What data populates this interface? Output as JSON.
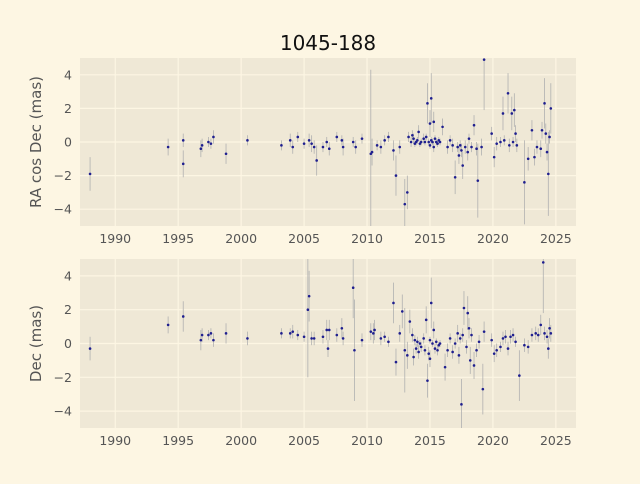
{
  "figure": {
    "title": "1045-188",
    "background": "#fdf6e3",
    "axes_background": "#efe8d6",
    "point_color": "#1f1f8f",
    "errorbar_color": "#b0b0b0"
  },
  "chart_data": [
    {
      "type": "scatter",
      "ylabel": "RA cos Dec (mas)",
      "xlim": [
        1987.2,
        2026.6
      ],
      "ylim": [
        -5,
        5
      ],
      "xticks": [
        1990,
        1995,
        2000,
        2005,
        2010,
        2015,
        2020,
        2025
      ],
      "yticks": [
        -4,
        -2,
        0,
        2,
        4
      ],
      "grid": true,
      "points": [
        {
          "x": 1988.0,
          "y": -1.9,
          "err": 1.0
        },
        {
          "x": 1994.2,
          "y": -0.3,
          "err": 0.5
        },
        {
          "x": 1995.4,
          "y": 0.1,
          "err": 0.4
        },
        {
          "x": 1995.4,
          "y": -1.3,
          "err": 0.8
        },
        {
          "x": 1996.8,
          "y": -0.4,
          "err": 0.5
        },
        {
          "x": 1996.9,
          "y": -0.2,
          "err": 0.4
        },
        {
          "x": 1997.4,
          "y": 0.0,
          "err": 0.3
        },
        {
          "x": 1997.6,
          "y": -0.1,
          "err": 0.3
        },
        {
          "x": 1997.8,
          "y": 0.3,
          "err": 0.4
        },
        {
          "x": 1998.8,
          "y": -0.7,
          "err": 0.6
        },
        {
          "x": 2000.5,
          "y": 0.1,
          "err": 0.3
        },
        {
          "x": 2003.2,
          "y": -0.2,
          "err": 0.3
        },
        {
          "x": 2003.9,
          "y": 0.1,
          "err": 0.4
        },
        {
          "x": 2004.1,
          "y": -0.3,
          "err": 0.4
        },
        {
          "x": 2004.5,
          "y": 0.3,
          "err": 0.3
        },
        {
          "x": 2005.0,
          "y": -0.1,
          "err": 0.3
        },
        {
          "x": 2005.4,
          "y": 0.1,
          "err": 0.4
        },
        {
          "x": 2005.6,
          "y": -0.1,
          "err": 0.5
        },
        {
          "x": 2005.8,
          "y": -0.3,
          "err": 0.4
        },
        {
          "x": 2006.0,
          "y": -1.1,
          "err": 0.9
        },
        {
          "x": 2006.5,
          "y": -0.3,
          "err": 0.3
        },
        {
          "x": 2006.8,
          "y": 0.0,
          "err": 0.3
        },
        {
          "x": 2007.0,
          "y": -0.4,
          "err": 0.4
        },
        {
          "x": 2007.6,
          "y": 0.3,
          "err": 0.3
        },
        {
          "x": 2008.0,
          "y": 0.1,
          "err": 0.3
        },
        {
          "x": 2008.1,
          "y": -0.3,
          "err": 0.5
        },
        {
          "x": 2008.9,
          "y": 0.0,
          "err": 0.3
        },
        {
          "x": 2009.1,
          "y": -0.3,
          "err": 0.4
        },
        {
          "x": 2009.6,
          "y": 0.2,
          "err": 0.3
        },
        {
          "x": 2010.3,
          "y": -0.7,
          "err": 5.0
        },
        {
          "x": 2010.4,
          "y": -0.6,
          "err": 0.8
        },
        {
          "x": 2010.8,
          "y": -0.2,
          "err": 0.3
        },
        {
          "x": 2011.1,
          "y": -0.3,
          "err": 0.4
        },
        {
          "x": 2011.4,
          "y": 0.1,
          "err": 0.3
        },
        {
          "x": 2011.7,
          "y": 0.3,
          "err": 0.3
        },
        {
          "x": 2012.1,
          "y": -0.5,
          "err": 0.6
        },
        {
          "x": 2012.3,
          "y": -2.0,
          "err": 1.2
        },
        {
          "x": 2012.6,
          "y": -0.3,
          "err": 0.4
        },
        {
          "x": 2013.0,
          "y": -3.7,
          "err": 1.5
        },
        {
          "x": 2013.2,
          "y": -3.0,
          "err": 1.0
        },
        {
          "x": 2013.3,
          "y": 0.3,
          "err": 0.3
        },
        {
          "x": 2013.5,
          "y": 0.0,
          "err": 0.3
        },
        {
          "x": 2013.6,
          "y": 0.4,
          "err": 0.3
        },
        {
          "x": 2013.7,
          "y": 0.2,
          "err": 0.3
        },
        {
          "x": 2013.8,
          "y": -0.1,
          "err": 0.2
        },
        {
          "x": 2013.9,
          "y": 0.0,
          "err": 0.2
        },
        {
          "x": 2014.0,
          "y": 0.1,
          "err": 0.2
        },
        {
          "x": 2014.1,
          "y": 0.6,
          "err": 0.4
        },
        {
          "x": 2014.2,
          "y": -0.1,
          "err": 0.2
        },
        {
          "x": 2014.3,
          "y": 0.0,
          "err": 0.2
        },
        {
          "x": 2014.5,
          "y": 0.2,
          "err": 0.3
        },
        {
          "x": 2014.6,
          "y": 0.0,
          "err": 0.2
        },
        {
          "x": 2014.7,
          "y": 0.3,
          "err": 0.2
        },
        {
          "x": 2014.8,
          "y": 2.3,
          "err": 1.2
        },
        {
          "x": 2014.9,
          "y": 0.0,
          "err": 0.2
        },
        {
          "x": 2015.0,
          "y": 1.1,
          "err": 0.8
        },
        {
          "x": 2015.0,
          "y": -0.2,
          "err": 0.2
        },
        {
          "x": 2015.1,
          "y": 0.1,
          "err": 0.2
        },
        {
          "x": 2015.1,
          "y": 2.6,
          "err": 1.5
        },
        {
          "x": 2015.2,
          "y": 0.0,
          "err": 0.2
        },
        {
          "x": 2015.3,
          "y": -0.3,
          "err": 0.3
        },
        {
          "x": 2015.3,
          "y": 1.2,
          "err": 0.6
        },
        {
          "x": 2015.4,
          "y": 0.2,
          "err": 0.2
        },
        {
          "x": 2015.5,
          "y": 0.0,
          "err": 0.2
        },
        {
          "x": 2015.6,
          "y": -0.1,
          "err": 0.2
        },
        {
          "x": 2015.7,
          "y": 0.1,
          "err": 0.2
        },
        {
          "x": 2015.8,
          "y": 0.0,
          "err": 0.2
        },
        {
          "x": 2016.0,
          "y": 0.9,
          "err": 0.5
        },
        {
          "x": 2016.4,
          "y": -0.3,
          "err": 0.4
        },
        {
          "x": 2016.6,
          "y": 0.1,
          "err": 0.3
        },
        {
          "x": 2016.8,
          "y": -0.2,
          "err": 0.4
        },
        {
          "x": 2017.0,
          "y": -2.1,
          "err": 1.0
        },
        {
          "x": 2017.2,
          "y": -0.3,
          "err": 0.3
        },
        {
          "x": 2017.3,
          "y": -0.8,
          "err": 0.5
        },
        {
          "x": 2017.4,
          "y": -0.2,
          "err": 0.3
        },
        {
          "x": 2017.5,
          "y": -0.5,
          "err": 0.4
        },
        {
          "x": 2017.6,
          "y": -1.4,
          "err": 0.8
        },
        {
          "x": 2017.8,
          "y": -0.3,
          "err": 0.4
        },
        {
          "x": 2018.0,
          "y": -0.6,
          "err": 0.5
        },
        {
          "x": 2018.1,
          "y": 0.2,
          "err": 0.3
        },
        {
          "x": 2018.3,
          "y": -0.3,
          "err": 0.3
        },
        {
          "x": 2018.5,
          "y": 1.0,
          "err": 0.6
        },
        {
          "x": 2018.7,
          "y": -0.4,
          "err": 0.4
        },
        {
          "x": 2018.8,
          "y": -2.3,
          "err": 2.2
        },
        {
          "x": 2019.1,
          "y": -0.3,
          "err": 0.5
        },
        {
          "x": 2019.3,
          "y": 4.9,
          "err": 3.0
        },
        {
          "x": 2019.9,
          "y": 0.5,
          "err": 0.4
        },
        {
          "x": 2020.1,
          "y": -0.9,
          "err": 0.6
        },
        {
          "x": 2020.3,
          "y": -0.1,
          "err": 0.4
        },
        {
          "x": 2020.6,
          "y": 0.0,
          "err": 0.3
        },
        {
          "x": 2020.8,
          "y": 1.7,
          "err": 1.0
        },
        {
          "x": 2020.9,
          "y": 0.1,
          "err": 0.3
        },
        {
          "x": 2021.2,
          "y": 2.9,
          "err": 1.2
        },
        {
          "x": 2021.3,
          "y": -0.2,
          "err": 0.4
        },
        {
          "x": 2021.5,
          "y": 1.7,
          "err": 1.0
        },
        {
          "x": 2021.6,
          "y": 0.0,
          "err": 0.3
        },
        {
          "x": 2021.7,
          "y": 1.9,
          "err": 1.0
        },
        {
          "x": 2021.8,
          "y": 0.5,
          "err": 0.5
        },
        {
          "x": 2021.9,
          "y": -0.2,
          "err": 0.4
        },
        {
          "x": 2022.5,
          "y": -2.4,
          "err": 2.5
        },
        {
          "x": 2022.8,
          "y": -1.0,
          "err": 0.7
        },
        {
          "x": 2023.1,
          "y": 0.7,
          "err": 0.6
        },
        {
          "x": 2023.3,
          "y": -0.9,
          "err": 0.5
        },
        {
          "x": 2023.5,
          "y": -0.3,
          "err": 0.4
        },
        {
          "x": 2023.8,
          "y": -0.4,
          "err": 0.5
        },
        {
          "x": 2023.9,
          "y": 0.7,
          "err": 0.5
        },
        {
          "x": 2024.1,
          "y": 2.3,
          "err": 1.5
        },
        {
          "x": 2024.2,
          "y": 0.5,
          "err": 0.6
        },
        {
          "x": 2024.3,
          "y": -0.6,
          "err": 0.5
        },
        {
          "x": 2024.4,
          "y": -1.9,
          "err": 2.5
        },
        {
          "x": 2024.5,
          "y": 0.3,
          "err": 0.4
        },
        {
          "x": 2024.6,
          "y": 2.0,
          "err": 1.5
        }
      ]
    },
    {
      "type": "scatter",
      "ylabel": "Dec (mas)",
      "xlim": [
        1987.2,
        2026.6
      ],
      "ylim": [
        -5,
        5
      ],
      "xticks": [
        1990,
        1995,
        2000,
        2005,
        2010,
        2015,
        2020,
        2025
      ],
      "yticks": [
        -4,
        -2,
        0,
        2,
        4
      ],
      "grid": true,
      "points": [
        {
          "x": 1988.0,
          "y": -0.3,
          "err": 0.7
        },
        {
          "x": 1994.2,
          "y": 1.1,
          "err": 0.5
        },
        {
          "x": 1995.4,
          "y": 1.6,
          "err": 0.9
        },
        {
          "x": 1996.8,
          "y": 0.2,
          "err": 0.6
        },
        {
          "x": 1996.9,
          "y": 0.5,
          "err": 0.4
        },
        {
          "x": 1997.4,
          "y": 0.5,
          "err": 0.3
        },
        {
          "x": 1997.6,
          "y": 0.6,
          "err": 0.3
        },
        {
          "x": 1997.8,
          "y": 0.2,
          "err": 0.4
        },
        {
          "x": 1998.8,
          "y": 0.6,
          "err": 0.6
        },
        {
          "x": 2000.5,
          "y": 0.3,
          "err": 0.4
        },
        {
          "x": 2003.2,
          "y": 0.6,
          "err": 0.3
        },
        {
          "x": 2003.9,
          "y": 0.6,
          "err": 0.3
        },
        {
          "x": 2004.1,
          "y": 0.7,
          "err": 0.4
        },
        {
          "x": 2004.5,
          "y": 0.5,
          "err": 0.3
        },
        {
          "x": 2005.0,
          "y": 0.4,
          "err": 0.3
        },
        {
          "x": 2005.3,
          "y": 2.0,
          "err": 4.0
        },
        {
          "x": 2005.4,
          "y": 2.8,
          "err": 1.5
        },
        {
          "x": 2005.6,
          "y": 0.3,
          "err": 0.4
        },
        {
          "x": 2005.8,
          "y": 0.3,
          "err": 0.4
        },
        {
          "x": 2006.5,
          "y": 0.4,
          "err": 0.4
        },
        {
          "x": 2006.8,
          "y": 0.8,
          "err": 0.6
        },
        {
          "x": 2006.9,
          "y": -0.3,
          "err": 0.5
        },
        {
          "x": 2007.0,
          "y": 0.8,
          "err": 0.6
        },
        {
          "x": 2007.6,
          "y": 0.5,
          "err": 0.4
        },
        {
          "x": 2008.0,
          "y": 0.9,
          "err": 0.6
        },
        {
          "x": 2008.1,
          "y": 0.3,
          "err": 0.4
        },
        {
          "x": 2008.9,
          "y": 3.3,
          "err": 1.8
        },
        {
          "x": 2009.0,
          "y": -0.4,
          "err": 3.0
        },
        {
          "x": 2009.6,
          "y": 0.2,
          "err": 0.4
        },
        {
          "x": 2010.3,
          "y": 0.7,
          "err": 0.5
        },
        {
          "x": 2010.5,
          "y": 0.6,
          "err": 0.6
        },
        {
          "x": 2010.6,
          "y": 0.8,
          "err": 0.6
        },
        {
          "x": 2011.1,
          "y": 0.3,
          "err": 0.4
        },
        {
          "x": 2011.4,
          "y": 0.4,
          "err": 0.3
        },
        {
          "x": 2011.7,
          "y": 0.1,
          "err": 0.3
        },
        {
          "x": 2012.1,
          "y": 2.4,
          "err": 1.2
        },
        {
          "x": 2012.3,
          "y": -1.1,
          "err": 0.8
        },
        {
          "x": 2012.6,
          "y": 0.6,
          "err": 0.5
        },
        {
          "x": 2012.8,
          "y": 1.9,
          "err": 1.0
        },
        {
          "x": 2013.0,
          "y": -0.4,
          "err": 2.5
        },
        {
          "x": 2013.2,
          "y": -0.7,
          "err": 0.8
        },
        {
          "x": 2013.4,
          "y": 1.3,
          "err": 0.7
        },
        {
          "x": 2013.6,
          "y": 0.5,
          "err": 0.4
        },
        {
          "x": 2013.7,
          "y": -0.8,
          "err": 0.5
        },
        {
          "x": 2013.8,
          "y": 0.2,
          "err": 0.3
        },
        {
          "x": 2013.9,
          "y": -0.3,
          "err": 0.3
        },
        {
          "x": 2014.0,
          "y": 0.1,
          "err": 0.3
        },
        {
          "x": 2014.1,
          "y": -0.5,
          "err": 0.4
        },
        {
          "x": 2014.2,
          "y": 0.0,
          "err": 0.2
        },
        {
          "x": 2014.3,
          "y": -0.2,
          "err": 0.3
        },
        {
          "x": 2014.5,
          "y": 0.3,
          "err": 0.3
        },
        {
          "x": 2014.6,
          "y": -0.4,
          "err": 0.3
        },
        {
          "x": 2014.7,
          "y": 1.4,
          "err": 0.8
        },
        {
          "x": 2014.8,
          "y": -2.2,
          "err": 1.0
        },
        {
          "x": 2014.9,
          "y": -0.6,
          "err": 0.4
        },
        {
          "x": 2015.0,
          "y": 0.2,
          "err": 0.2
        },
        {
          "x": 2015.0,
          "y": -0.9,
          "err": 0.5
        },
        {
          "x": 2015.1,
          "y": 2.4,
          "err": 1.5
        },
        {
          "x": 2015.2,
          "y": 0.0,
          "err": 0.2
        },
        {
          "x": 2015.3,
          "y": 0.8,
          "err": 0.5
        },
        {
          "x": 2015.4,
          "y": -0.3,
          "err": 0.3
        },
        {
          "x": 2015.5,
          "y": 0.1,
          "err": 0.2
        },
        {
          "x": 2015.6,
          "y": -0.4,
          "err": 0.3
        },
        {
          "x": 2015.7,
          "y": -0.1,
          "err": 0.2
        },
        {
          "x": 2015.8,
          "y": 0.0,
          "err": 0.2
        },
        {
          "x": 2016.2,
          "y": -1.4,
          "err": 0.8
        },
        {
          "x": 2016.4,
          "y": -0.4,
          "err": 0.4
        },
        {
          "x": 2016.6,
          "y": 0.3,
          "err": 0.3
        },
        {
          "x": 2016.8,
          "y": -0.5,
          "err": 0.4
        },
        {
          "x": 2017.0,
          "y": 0.0,
          "err": 0.3
        },
        {
          "x": 2017.2,
          "y": 0.6,
          "err": 0.5
        },
        {
          "x": 2017.3,
          "y": -0.7,
          "err": 0.5
        },
        {
          "x": 2017.4,
          "y": 0.3,
          "err": 0.3
        },
        {
          "x": 2017.5,
          "y": -3.6,
          "err": 1.5
        },
        {
          "x": 2017.6,
          "y": 0.5,
          "err": 0.4
        },
        {
          "x": 2017.7,
          "y": 2.1,
          "err": 1.0
        },
        {
          "x": 2017.9,
          "y": -0.2,
          "err": 0.4
        },
        {
          "x": 2018.0,
          "y": 1.8,
          "err": 1.0
        },
        {
          "x": 2018.1,
          "y": 0.9,
          "err": 0.6
        },
        {
          "x": 2018.2,
          "y": -1.0,
          "err": 0.8
        },
        {
          "x": 2018.3,
          "y": 0.5,
          "err": 0.4
        },
        {
          "x": 2018.5,
          "y": -1.3,
          "err": 0.8
        },
        {
          "x": 2018.7,
          "y": -0.4,
          "err": 0.4
        },
        {
          "x": 2018.9,
          "y": 0.1,
          "err": 0.4
        },
        {
          "x": 2019.2,
          "y": -2.7,
          "err": 1.5
        },
        {
          "x": 2019.3,
          "y": 0.7,
          "err": 0.6
        },
        {
          "x": 2019.9,
          "y": 0.2,
          "err": 0.4
        },
        {
          "x": 2020.1,
          "y": -0.6,
          "err": 0.5
        },
        {
          "x": 2020.3,
          "y": -0.4,
          "err": 0.4
        },
        {
          "x": 2020.6,
          "y": -0.2,
          "err": 0.3
        },
        {
          "x": 2020.8,
          "y": 0.3,
          "err": 0.4
        },
        {
          "x": 2021.0,
          "y": 0.4,
          "err": 0.4
        },
        {
          "x": 2021.2,
          "y": -0.3,
          "err": 0.4
        },
        {
          "x": 2021.4,
          "y": 0.4,
          "err": 0.4
        },
        {
          "x": 2021.6,
          "y": 0.5,
          "err": 0.4
        },
        {
          "x": 2021.8,
          "y": 0.1,
          "err": 0.3
        },
        {
          "x": 2022.1,
          "y": -1.9,
          "err": 1.5
        },
        {
          "x": 2022.5,
          "y": -0.1,
          "err": 0.4
        },
        {
          "x": 2022.8,
          "y": -0.2,
          "err": 0.4
        },
        {
          "x": 2023.1,
          "y": 0.5,
          "err": 0.4
        },
        {
          "x": 2023.4,
          "y": 0.6,
          "err": 0.4
        },
        {
          "x": 2023.6,
          "y": 0.5,
          "err": 0.4
        },
        {
          "x": 2023.8,
          "y": 1.1,
          "err": 0.6
        },
        {
          "x": 2024.0,
          "y": 4.8,
          "err": 3.0
        },
        {
          "x": 2024.1,
          "y": 0.6,
          "err": 0.4
        },
        {
          "x": 2024.3,
          "y": 0.4,
          "err": 0.4
        },
        {
          "x": 2024.4,
          "y": -0.3,
          "err": 0.6
        },
        {
          "x": 2024.5,
          "y": 0.9,
          "err": 0.6
        },
        {
          "x": 2024.6,
          "y": 0.6,
          "err": 0.5
        }
      ]
    }
  ]
}
